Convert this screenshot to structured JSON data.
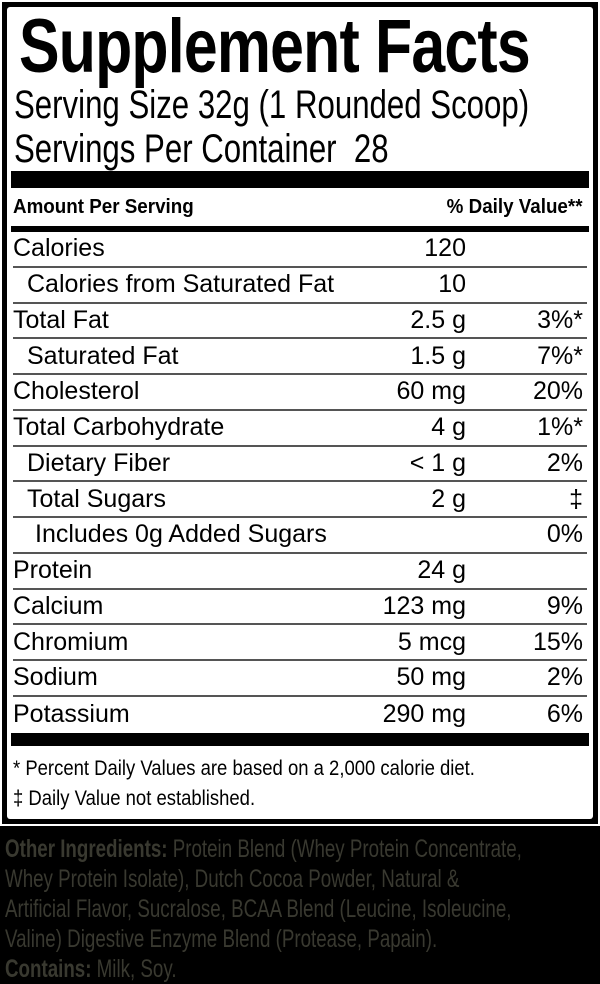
{
  "colors": {
    "page_bg": "#000000",
    "panel_bg": "#ffffff",
    "text": "#000000",
    "divider": "#555555",
    "ingredients_text": "#393930"
  },
  "label": {
    "title": "Supplement Facts",
    "serving_size": "Serving Size 32g (1 Rounded Scoop)",
    "servings_per_container": "Servings Per Container  28",
    "header": {
      "left": "Amount Per Serving",
      "right": "% Daily Value**"
    },
    "rows": [
      {
        "name": "Calories",
        "amount": "120",
        "dv": "",
        "indent": 0
      },
      {
        "name": "Calories from Saturated Fat",
        "amount": "10",
        "dv": "",
        "indent": 1
      },
      {
        "name": "Total Fat",
        "amount": "2.5 g",
        "dv": "3%*",
        "indent": 0
      },
      {
        "name": "Saturated Fat",
        "amount": "1.5 g",
        "dv": "7%*",
        "indent": 1
      },
      {
        "name": "Cholesterol",
        "amount": "60 mg",
        "dv": "20%",
        "indent": 0
      },
      {
        "name": "Total Carbohydrate",
        "amount": "4 g",
        "dv": "1%*",
        "indent": 0
      },
      {
        "name": "Dietary Fiber",
        "amount": "< 1 g",
        "dv": "2%",
        "indent": 1
      },
      {
        "name": "Total Sugars",
        "amount": "2 g",
        "dv": "‡",
        "indent": 1
      },
      {
        "name": "Includes 0g Added Sugars",
        "amount": "",
        "dv": "0%",
        "indent": 2
      },
      {
        "name": "Protein",
        "amount": "24 g",
        "dv": "",
        "indent": 0
      },
      {
        "name": "Calcium",
        "amount": "123 mg",
        "dv": "9%",
        "indent": 0
      },
      {
        "name": "Chromium",
        "amount": "5 mcg",
        "dv": "15%",
        "indent": 0
      },
      {
        "name": "Sodium",
        "amount": "50 mg",
        "dv": "2%",
        "indent": 0
      },
      {
        "name": "Potassium",
        "amount": "290 mg",
        "dv": "6%",
        "indent": 0
      }
    ],
    "footnotes": [
      "* Percent Daily Values are based on a 2,000 calorie diet.",
      "‡ Daily Value not established."
    ]
  },
  "ingredients": {
    "lines": [
      {
        "bold": "Other Ingredients:",
        "text": " Protein Blend (Whey Protein Concentrate,"
      },
      {
        "bold": "",
        "text": "Whey Protein Isolate), Dutch Cocoa Powder, Natural &"
      },
      {
        "bold": "",
        "text": "Artificial Flavor, Sucralose, BCAA Blend (Leucine, Isoleucine,"
      },
      {
        "bold": "",
        "text": "Valine) Digestive Enzyme Blend (Protease, Papain)."
      },
      {
        "bold": "Contains:",
        "text": " Milk, Soy."
      }
    ]
  }
}
